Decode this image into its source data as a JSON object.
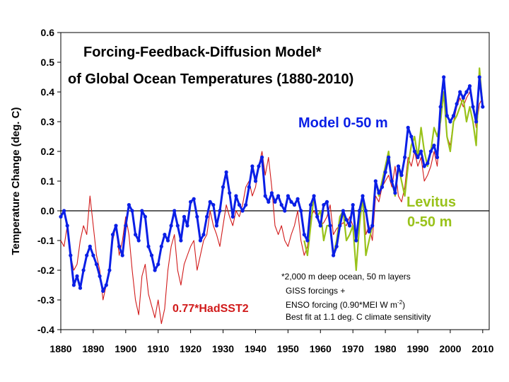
{
  "chart_data": {
    "type": "line",
    "title_line1": "Forcing-Feedback-Diffusion Model*",
    "title_line2": "of Global Ocean Temperatures (1880-2010)",
    "xlabel": "",
    "ylabel": "Temperature Change (deg. C)",
    "xlim": [
      1880,
      2012
    ],
    "ylim": [
      -0.4,
      0.6
    ],
    "x_ticks": [
      1880,
      1890,
      1900,
      1910,
      1920,
      1930,
      1940,
      1950,
      1960,
      1970,
      1980,
      1990,
      2000,
      2010
    ],
    "y_ticks": [
      -0.4,
      -0.3,
      -0.2,
      -0.1,
      0.0,
      0.1,
      0.2,
      0.3,
      0.4,
      0.5,
      0.6
    ],
    "y_tick_labels": [
      "-0.4",
      "-0.3",
      "-0.2",
      "-0.1",
      "0.0",
      "0.1",
      "0.2",
      "0.3",
      "0.4",
      "0.5",
      "0.6"
    ],
    "grid": false,
    "labels": {
      "model": "Model 0-50 m",
      "levitus_1": "Levitus",
      "levitus_2": "0-50 m",
      "hadsst": "0.77*HadSST2"
    },
    "note": {
      "line1": "*2,000 m deep ocean, 50 m layers",
      "line2": "GISS forcings +",
      "line3_pre": "ENSO forcing (0.90*MEI W m",
      "line3_sup": "-2",
      "line3_post": ")",
      "line4": "Best fit at 1.1 deg. C climate sensitivity"
    },
    "colors": {
      "model": "#0a1fe6",
      "hadsst": "#d11a1a",
      "levitus": "#99c21a",
      "title": "#000000",
      "model_label": "#0a1fe6",
      "hadsst_label": "#d11a1a",
      "levitus_label": "#99c21a"
    },
    "series": [
      {
        "key": "hadsst",
        "x": [
          1880,
          1881,
          1882,
          1883,
          1884,
          1885,
          1886,
          1887,
          1888,
          1889,
          1890,
          1891,
          1892,
          1893,
          1894,
          1895,
          1896,
          1897,
          1898,
          1899,
          1900,
          1901,
          1902,
          1903,
          1904,
          1905,
          1906,
          1907,
          1908,
          1909,
          1910,
          1911,
          1912,
          1913,
          1914,
          1915,
          1916,
          1917,
          1918,
          1919,
          1920,
          1921,
          1922,
          1923,
          1924,
          1925,
          1926,
          1927,
          1928,
          1929,
          1930,
          1931,
          1932,
          1933,
          1934,
          1935,
          1936,
          1937,
          1938,
          1939,
          1940,
          1941,
          1942,
          1943,
          1944,
          1945,
          1946,
          1947,
          1948,
          1949,
          1950,
          1951,
          1952,
          1953,
          1954,
          1955,
          1956,
          1957,
          1958,
          1959,
          1960,
          1961,
          1962,
          1963,
          1964,
          1965,
          1966,
          1967,
          1968,
          1969,
          1970,
          1971,
          1972,
          1973,
          1974,
          1975,
          1976,
          1977,
          1978,
          1979,
          1980,
          1981,
          1982,
          1983,
          1984,
          1985,
          1986,
          1987,
          1988,
          1989,
          1990,
          1991,
          1992,
          1993,
          1994,
          1995,
          1996,
          1997,
          1998,
          1999,
          2000,
          2001,
          2002,
          2003,
          2004,
          2005,
          2006,
          2007,
          2008,
          2009,
          2010
        ],
        "y": [
          -0.1,
          -0.12,
          -0.05,
          -0.15,
          -0.2,
          -0.18,
          -0.1,
          -0.05,
          -0.08,
          0.05,
          -0.05,
          -0.15,
          -0.2,
          -0.3,
          -0.25,
          -0.2,
          -0.1,
          -0.05,
          -0.15,
          -0.1,
          -0.02,
          -0.08,
          -0.2,
          -0.3,
          -0.35,
          -0.22,
          -0.18,
          -0.28,
          -0.32,
          -0.36,
          -0.3,
          -0.38,
          -0.33,
          -0.2,
          -0.12,
          -0.08,
          -0.2,
          -0.25,
          -0.18,
          -0.15,
          -0.12,
          -0.1,
          -0.2,
          -0.15,
          -0.1,
          -0.08,
          0.0,
          -0.05,
          -0.08,
          -0.12,
          -0.05,
          0.02,
          -0.02,
          -0.05,
          0.0,
          -0.02,
          0.02,
          0.08,
          0.1,
          0.05,
          0.08,
          0.15,
          0.2,
          0.12,
          0.18,
          0.08,
          -0.05,
          -0.08,
          -0.05,
          -0.1,
          -0.12,
          -0.08,
          -0.05,
          0.0,
          -0.1,
          -0.15,
          -0.12,
          -0.02,
          0.0,
          -0.02,
          -0.05,
          -0.04,
          -0.02,
          0.02,
          -0.08,
          -0.06,
          -0.05,
          -0.04,
          -0.05,
          -0.02,
          -0.05,
          -0.08,
          -0.05,
          0.05,
          -0.08,
          -0.05,
          -0.1,
          0.05,
          0.03,
          0.08,
          0.1,
          0.12,
          0.08,
          0.15,
          0.05,
          0.03,
          0.08,
          0.18,
          0.15,
          0.2,
          0.15,
          0.18,
          0.1,
          0.12,
          0.15,
          0.2,
          0.15,
          0.3,
          0.45,
          0.25,
          0.22,
          0.3,
          0.35,
          0.38,
          0.35,
          0.38,
          0.4,
          0.35,
          0.28,
          0.36,
          0.38
        ]
      },
      {
        "key": "levitus",
        "x": [
          1955,
          1956,
          1957,
          1958,
          1959,
          1960,
          1961,
          1962,
          1963,
          1964,
          1965,
          1966,
          1967,
          1968,
          1969,
          1970,
          1971,
          1972,
          1973,
          1974,
          1975,
          1976,
          1977,
          1978,
          1979,
          1980,
          1981,
          1982,
          1983,
          1984,
          1985,
          1986,
          1987,
          1988,
          1989,
          1990,
          1991,
          1992,
          1993,
          1994,
          1995,
          1996,
          1997,
          1998,
          1999,
          2000,
          2001,
          2002,
          2003,
          2004,
          2005,
          2006,
          2007,
          2008,
          2009,
          2010
        ],
        "y": [
          -0.1,
          -0.15,
          -0.05,
          0.05,
          -0.02,
          0.0,
          -0.1,
          -0.05,
          -0.05,
          -0.15,
          -0.1,
          -0.02,
          0.0,
          -0.1,
          -0.08,
          -0.05,
          -0.2,
          -0.05,
          0.05,
          -0.15,
          -0.1,
          -0.05,
          0.1,
          0.05,
          0.1,
          0.15,
          0.2,
          0.1,
          0.05,
          0.15,
          0.1,
          0.05,
          0.15,
          0.22,
          0.25,
          0.18,
          0.28,
          0.2,
          0.15,
          0.2,
          0.28,
          0.25,
          0.3,
          0.4,
          0.25,
          0.2,
          0.3,
          0.32,
          0.35,
          0.38,
          0.3,
          0.35,
          0.3,
          0.22,
          0.48,
          0.35
        ]
      },
      {
        "key": "model",
        "x": [
          1880,
          1881,
          1882,
          1883,
          1884,
          1885,
          1886,
          1887,
          1888,
          1889,
          1890,
          1891,
          1892,
          1893,
          1894,
          1895,
          1896,
          1897,
          1898,
          1899,
          1900,
          1901,
          1902,
          1903,
          1904,
          1905,
          1906,
          1907,
          1908,
          1909,
          1910,
          1911,
          1912,
          1913,
          1914,
          1915,
          1916,
          1917,
          1918,
          1919,
          1920,
          1921,
          1922,
          1923,
          1924,
          1925,
          1926,
          1927,
          1928,
          1929,
          1930,
          1931,
          1932,
          1933,
          1934,
          1935,
          1936,
          1937,
          1938,
          1939,
          1940,
          1941,
          1942,
          1943,
          1944,
          1945,
          1946,
          1947,
          1948,
          1949,
          1950,
          1951,
          1952,
          1953,
          1954,
          1955,
          1956,
          1957,
          1958,
          1959,
          1960,
          1961,
          1962,
          1963,
          1964,
          1965,
          1966,
          1967,
          1968,
          1969,
          1970,
          1971,
          1972,
          1973,
          1974,
          1975,
          1976,
          1977,
          1978,
          1979,
          1980,
          1981,
          1982,
          1983,
          1984,
          1985,
          1986,
          1987,
          1988,
          1989,
          1990,
          1991,
          1992,
          1993,
          1994,
          1995,
          1996,
          1997,
          1998,
          1999,
          2000,
          2001,
          2002,
          2003,
          2004,
          2005,
          2006,
          2007,
          2008,
          2009,
          2010
        ],
        "y": [
          -0.02,
          0.0,
          -0.05,
          -0.15,
          -0.25,
          -0.22,
          -0.26,
          -0.2,
          -0.15,
          -0.12,
          -0.15,
          -0.18,
          -0.22,
          -0.27,
          -0.25,
          -0.2,
          -0.08,
          -0.05,
          -0.12,
          -0.15,
          -0.05,
          0.02,
          0.0,
          -0.08,
          -0.1,
          0.0,
          -0.02,
          -0.12,
          -0.15,
          -0.2,
          -0.18,
          -0.12,
          -0.08,
          -0.1,
          -0.05,
          0.0,
          -0.05,
          -0.1,
          -0.02,
          -0.05,
          0.03,
          0.04,
          -0.02,
          -0.1,
          -0.08,
          -0.02,
          0.03,
          0.02,
          -0.05,
          0.0,
          0.08,
          0.13,
          0.06,
          -0.02,
          0.05,
          0.02,
          0.0,
          0.02,
          0.08,
          0.15,
          0.1,
          0.15,
          0.18,
          0.05,
          0.03,
          0.06,
          0.03,
          0.05,
          0.02,
          0.0,
          0.05,
          0.03,
          0.02,
          0.04,
          0.0,
          -0.08,
          -0.1,
          0.02,
          0.05,
          -0.02,
          -0.05,
          0.02,
          0.03,
          -0.05,
          -0.15,
          -0.12,
          -0.05,
          0.0,
          -0.03,
          -0.05,
          0.02,
          -0.1,
          0.0,
          0.05,
          0.0,
          -0.07,
          -0.05,
          0.1,
          0.06,
          0.08,
          0.13,
          0.18,
          0.1,
          0.06,
          0.15,
          0.12,
          0.18,
          0.28,
          0.25,
          0.2,
          0.18,
          0.2,
          0.15,
          0.16,
          0.2,
          0.22,
          0.18,
          0.35,
          0.45,
          0.32,
          0.3,
          0.32,
          0.36,
          0.4,
          0.38,
          0.4,
          0.42,
          0.35,
          0.3,
          0.45,
          0.35
        ]
      }
    ]
  }
}
